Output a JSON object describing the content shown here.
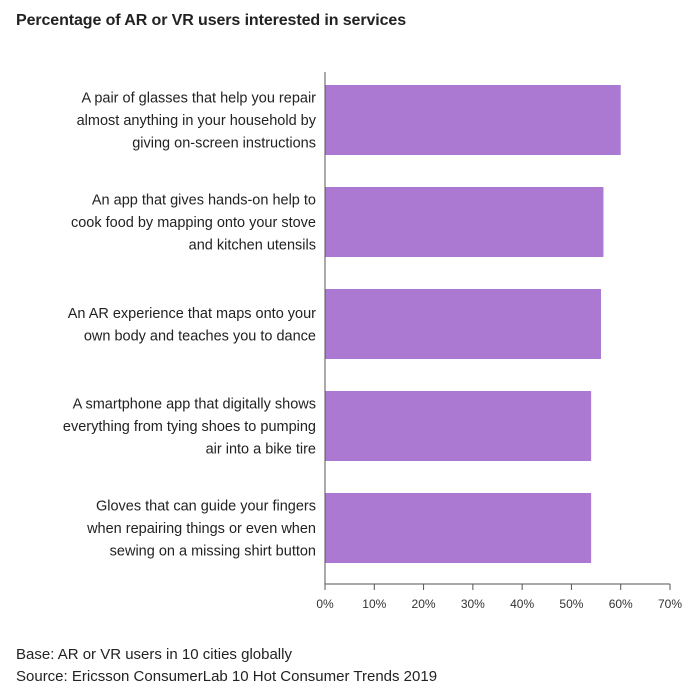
{
  "chart_data": {
    "type": "bar",
    "orientation": "horizontal",
    "title": "Percentage of AR or VR users interested in services",
    "categories": [
      [
        "A pair of glasses that help you repair",
        "almost anything in your household by",
        "giving on-screen instructions"
      ],
      [
        "An app that gives hands-on help to",
        "cook food by mapping onto your stove",
        "and kitchen utensils"
      ],
      [
        "An AR experience that maps onto your",
        "own body and teaches you to dance"
      ],
      [
        "A smartphone app that digitally shows",
        "everything from tying shoes to pumping",
        "air into a bike tire"
      ],
      [
        "Gloves that can guide your fingers",
        "when repairing things or even when",
        "sewing on a missing shirt button"
      ]
    ],
    "values": [
      60,
      56.5,
      56,
      54,
      54
    ],
    "xlim": [
      0,
      70
    ],
    "x_ticks": [
      "0%",
      "10%",
      "20%",
      "30%",
      "40%",
      "50%",
      "60%",
      "70%"
    ],
    "bar_color": "#ab78d2",
    "grid": false,
    "legend": "none"
  },
  "footer": {
    "base": "Base: AR or VR users in 10 cities globally",
    "source": "Source: Ericsson ConsumerLab 10 Hot Consumer Trends 2019"
  }
}
